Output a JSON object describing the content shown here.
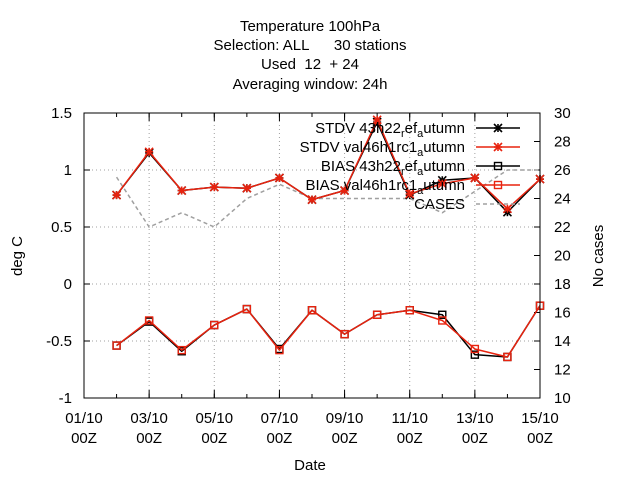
{
  "chart_data": {
    "type": "line",
    "title_lines": [
      "Temperature 100hPa",
      "Selection: ALL      30 stations",
      "Used  12  + 24",
      "Averaging window: 24h"
    ],
    "xlabel": "Date",
    "ylabel": "deg C",
    "y2label": "No cases",
    "xlim": [
      1,
      15
    ],
    "ylim": [
      -1,
      1.5
    ],
    "y2lim": [
      10,
      30
    ],
    "grid": true,
    "legend_position": "top-right",
    "x_ticks": [
      {
        "x": 1,
        "line1": "01/10",
        "line2": "00Z"
      },
      {
        "x": 3,
        "line1": "03/10",
        "line2": "00Z"
      },
      {
        "x": 5,
        "line1": "05/10",
        "line2": "00Z"
      },
      {
        "x": 7,
        "line1": "07/10",
        "line2": "00Z"
      },
      {
        "x": 9,
        "line1": "09/10",
        "line2": "00Z"
      },
      {
        "x": 11,
        "line1": "11/10",
        "line2": "00Z"
      },
      {
        "x": 13,
        "line1": "13/10",
        "line2": "00Z"
      },
      {
        "x": 15,
        "line1": "15/10",
        "line2": "00Z"
      }
    ],
    "y_ticks": [
      {
        "v": -1,
        "label": "-1"
      },
      {
        "v": -0.5,
        "label": "-0.5"
      },
      {
        "v": 0,
        "label": "0"
      },
      {
        "v": 0.5,
        "label": "0.5"
      },
      {
        "v": 1,
        "label": "1"
      },
      {
        "v": 1.5,
        "label": "1.5"
      }
    ],
    "y2_ticks": [
      {
        "v": 10,
        "label": "10"
      },
      {
        "v": 12,
        "label": "12"
      },
      {
        "v": 14,
        "label": "14"
      },
      {
        "v": 16,
        "label": "16"
      },
      {
        "v": 18,
        "label": "18"
      },
      {
        "v": 20,
        "label": "20"
      },
      {
        "v": 22,
        "label": "22"
      },
      {
        "v": 24,
        "label": "24"
      },
      {
        "v": 26,
        "label": "26"
      },
      {
        "v": 28,
        "label": "28"
      },
      {
        "v": 30,
        "label": "30"
      }
    ],
    "series": [
      {
        "key": "stdv_ref",
        "legend_text": "STDV 43h22",
        "legend_sub_mid": "r",
        "legend_text_mid": "ef",
        "legend_sub_end": "a",
        "legend_text_end": "utumn",
        "color": "#000000",
        "marker": "star",
        "axis": "y1",
        "points": [
          [
            2,
            0.78
          ],
          [
            3,
            1.15
          ],
          [
            4,
            0.82
          ],
          [
            5,
            0.85
          ],
          [
            6,
            0.84
          ],
          [
            7,
            0.93
          ],
          [
            8,
            0.74
          ],
          [
            9,
            0.82
          ],
          [
            10,
            1.42
          ],
          [
            11,
            0.78
          ],
          [
            12,
            0.91
          ],
          [
            13,
            0.93
          ],
          [
            14,
            0.63
          ],
          [
            15,
            0.92
          ]
        ]
      },
      {
        "key": "stdv_val",
        "legend_text": "STDV val46h1rc1",
        "legend_sub_end": "a",
        "legend_text_end": "utumn",
        "color": "#e8230f",
        "marker": "star",
        "axis": "y1",
        "points": [
          [
            2,
            0.78
          ],
          [
            3,
            1.16
          ],
          [
            4,
            0.82
          ],
          [
            5,
            0.85
          ],
          [
            6,
            0.84
          ],
          [
            7,
            0.93
          ],
          [
            8,
            0.74
          ],
          [
            9,
            0.82
          ],
          [
            10,
            1.44
          ],
          [
            11,
            0.79
          ],
          [
            12,
            0.88
          ],
          [
            13,
            0.93
          ],
          [
            14,
            0.66
          ],
          [
            15,
            0.92
          ]
        ]
      },
      {
        "key": "bias_ref",
        "legend_text": "BIAS 43h22",
        "legend_sub_mid": "r",
        "legend_text_mid": "ef",
        "legend_sub_end": "a",
        "legend_text_end": "utumn",
        "color": "#000000",
        "marker": "square",
        "axis": "y1",
        "points": [
          [
            2,
            -0.54
          ],
          [
            3,
            -0.33
          ],
          [
            4,
            -0.59
          ],
          [
            5,
            -0.36
          ],
          [
            6,
            -0.22
          ],
          [
            7,
            -0.57
          ],
          [
            8,
            -0.23
          ],
          [
            9,
            -0.44
          ],
          [
            10,
            -0.27
          ],
          [
            11,
            -0.23
          ],
          [
            12,
            -0.27
          ],
          [
            13,
            -0.62
          ],
          [
            14,
            -0.64
          ],
          [
            15,
            -0.19
          ]
        ]
      },
      {
        "key": "bias_val",
        "legend_text": "BIAS val46h1rc1",
        "legend_sub_end": "a",
        "legend_text_end": "utumn",
        "color": "#e8230f",
        "marker": "square",
        "axis": "y1",
        "points": [
          [
            2,
            -0.54
          ],
          [
            3,
            -0.32
          ],
          [
            4,
            -0.58
          ],
          [
            5,
            -0.36
          ],
          [
            6,
            -0.22
          ],
          [
            7,
            -0.58
          ],
          [
            8,
            -0.23
          ],
          [
            9,
            -0.44
          ],
          [
            10,
            -0.27
          ],
          [
            11,
            -0.23
          ],
          [
            12,
            -0.32
          ],
          [
            13,
            -0.57
          ],
          [
            14,
            -0.64
          ],
          [
            15,
            -0.19
          ]
        ]
      },
      {
        "key": "cases",
        "legend_text": "CASES",
        "color": "#a0a0a0",
        "marker": "none",
        "dashed": true,
        "axis": "y2",
        "points": [
          [
            2,
            25.5
          ],
          [
            3,
            22
          ],
          [
            4,
            23
          ],
          [
            5,
            22
          ],
          [
            6,
            24
          ],
          [
            7,
            25
          ],
          [
            8,
            24
          ],
          [
            9,
            24
          ],
          [
            10,
            24
          ],
          [
            11,
            24
          ],
          [
            12,
            23
          ],
          [
            13,
            24.5
          ],
          [
            14,
            26
          ],
          [
            15,
            26
          ]
        ]
      }
    ]
  }
}
